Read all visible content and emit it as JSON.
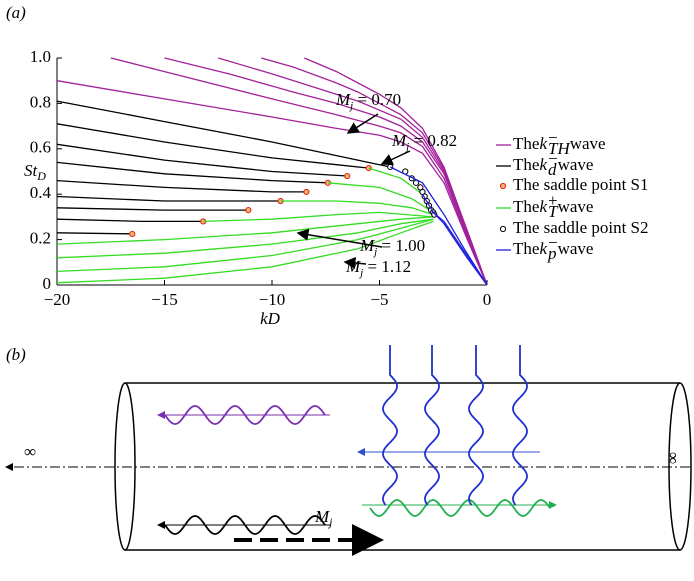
{
  "chart_data": {
    "type": "line",
    "panel_label": "(a)",
    "xlabel": "kD",
    "ylabel": {
      "main": "St",
      "sub": "D"
    },
    "xlim": [
      -20,
      0
    ],
    "ylim": [
      0,
      1
    ],
    "xticks": [
      {
        "value": -20,
        "label": "−20"
      },
      {
        "value": -15,
        "label": "−15"
      },
      {
        "value": -10,
        "label": "−10"
      },
      {
        "value": -5,
        "label": "−5"
      },
      0
    ],
    "yticks": [
      0,
      0.2,
      0.4,
      0.6,
      0.8,
      {
        "value": 1,
        "label": "1.0"
      }
    ],
    "series": [
      {
        "name": [
          "The ",
          "k",
          "−",
          "TH",
          " wave"
        ],
        "color": "#a3219a",
        "curves": [
          {
            "x": [
              -20,
              -15,
              -10,
              -7,
              -5,
              -4,
              -3,
              -2,
              -1,
              0
            ],
            "values": [
              0.9,
              0.82,
              0.74,
              0.69,
              0.66,
              0.63,
              0.58,
              0.45,
              0.22,
              0
            ]
          },
          {
            "x": [
              -17.5,
              -15,
              -10,
              -7,
              -5,
              -4,
              -3,
              -2,
              -1,
              0
            ],
            "values": [
              1.0,
              0.94,
              0.82,
              0.75,
              0.7,
              0.67,
              0.61,
              0.47,
              0.23,
              0
            ]
          },
          {
            "x": [
              -15,
              -12,
              -9,
              -7,
              -5,
              -4,
              -3,
              -2,
              -1,
              0
            ],
            "values": [
              1.0,
              0.93,
              0.85,
              0.8,
              0.74,
              0.7,
              0.63,
              0.49,
              0.24,
              0
            ]
          },
          {
            "x": [
              -12.5,
              -10,
              -8,
              -6,
              -5,
              -4,
              -3,
              -2,
              -1,
              0
            ],
            "values": [
              1.0,
              0.93,
              0.87,
              0.81,
              0.77,
              0.73,
              0.65,
              0.5,
              0.25,
              0
            ]
          },
          {
            "x": [
              -10.5,
              -9,
              -7,
              -6,
              -5,
              -4,
              -3,
              -2,
              -1,
              0
            ],
            "values": [
              1.0,
              0.96,
              0.89,
              0.85,
              0.8,
              0.75,
              0.67,
              0.51,
              0.26,
              0
            ]
          },
          {
            "x": [
              -8.5,
              -7,
              -6,
              -5,
              -4,
              -3,
              -2,
              -1,
              0
            ],
            "values": [
              1.0,
              0.94,
              0.89,
              0.84,
              0.78,
              0.69,
              0.52,
              0.26,
              0
            ]
          }
        ]
      },
      {
        "name": [
          "The ",
          "k",
          "−",
          "d",
          " wave"
        ],
        "color": "#000000",
        "curves": [
          {
            "x": [
              -20,
              -15,
              -10,
              -7,
              -5,
              -4.5
            ],
            "values": [
              0.81,
              0.72,
              0.63,
              0.57,
              0.53,
              0.52
            ]
          },
          {
            "x": [
              -20,
              -15,
              -10,
              -7,
              -5.5
            ],
            "values": [
              0.71,
              0.63,
              0.56,
              0.53,
              0.515
            ]
          },
          {
            "x": [
              -20,
              -15,
              -10,
              -6.5
            ],
            "values": [
              0.62,
              0.55,
              0.5,
              0.48
            ]
          },
          {
            "x": [
              -20,
              -15,
              -10,
              -7.4
            ],
            "values": [
              0.54,
              0.49,
              0.46,
              0.45
            ]
          },
          {
            "x": [
              -20,
              -15,
              -10,
              -8.4
            ],
            "values": [
              0.46,
              0.43,
              0.41,
              0.41
            ]
          },
          {
            "x": [
              -20,
              -15,
              -11,
              -9.6
            ],
            "values": [
              0.39,
              0.37,
              0.37,
              0.37
            ]
          },
          {
            "x": [
              -20,
              -15,
              -11.1
            ],
            "values": [
              0.34,
              0.33,
              0.33
            ]
          },
          {
            "x": [
              -20,
              -16,
              -13.2
            ],
            "values": [
              0.29,
              0.28,
              0.28
            ]
          },
          {
            "x": [
              -20,
              -16.5
            ],
            "values": [
              0.23,
              0.225
            ]
          }
        ]
      },
      {
        "name": "The saddle point S1",
        "color": "#e0201a",
        "fill": "#f6b26b",
        "marker": "circle",
        "x": [
          -16.5,
          -13.2,
          -11.1,
          -9.6,
          -8.4,
          -7.4,
          -6.5,
          -5.5
        ],
        "values": [
          0.225,
          0.28,
          0.33,
          0.37,
          0.41,
          0.45,
          0.48,
          0.515
        ]
      },
      {
        "name": [
          "The ",
          "k",
          "+",
          "T",
          " wave"
        ],
        "color": "#33dd22",
        "curves": [
          {
            "x": [
              -5.5,
              -4,
              -3,
              -2.5
            ],
            "values": [
              0.515,
              0.47,
              0.4,
              0.33
            ]
          },
          {
            "x": [
              -7.4,
              -5,
              -3.5,
              -2.5
            ],
            "values": [
              0.45,
              0.43,
              0.38,
              0.32
            ]
          },
          {
            "x": [
              -9.6,
              -7,
              -5,
              -3.5,
              -2.5
            ],
            "values": [
              0.37,
              0.37,
              0.36,
              0.34,
              0.31
            ]
          },
          {
            "x": [
              -13.2,
              -10,
              -7,
              -5,
              -2.5
            ],
            "values": [
              0.28,
              0.29,
              0.31,
              0.32,
              0.3
            ]
          },
          {
            "x": [
              -20,
              -15,
              -10,
              -6,
              -4,
              -2.5
            ],
            "values": [
              0.18,
              0.2,
              0.23,
              0.27,
              0.29,
              0.3
            ]
          },
          {
            "x": [
              -20,
              -15,
              -10,
              -6,
              -4,
              -2.5
            ],
            "values": [
              0.12,
              0.14,
              0.18,
              0.23,
              0.27,
              0.29
            ]
          },
          {
            "x": [
              -20,
              -15,
              -10,
              -6,
              -4,
              -2.5
            ],
            "values": [
              0.06,
              0.08,
              0.13,
              0.2,
              0.25,
              0.29
            ]
          },
          {
            "x": [
              -20,
              -15,
              -10,
              -6,
              -4,
              -2.5
            ],
            "values": [
              0.01,
              0.03,
              0.08,
              0.16,
              0.23,
              0.28
            ]
          }
        ]
      },
      {
        "name": "The saddle point S2",
        "color": "#000000",
        "fill": "#ffffff",
        "marker": "circle",
        "x": [
          -4.5,
          -3.8,
          -3.5,
          -3.3,
          -3.1,
          -3.0,
          -2.9,
          -2.8,
          -2.7,
          -2.6,
          -2.5,
          -2.45
        ],
        "values": [
          0.52,
          0.5,
          0.47,
          0.45,
          0.43,
          0.41,
          0.39,
          0.37,
          0.35,
          0.33,
          0.32,
          0.31
        ]
      },
      {
        "name": [
          "The ",
          "k",
          "−",
          "p",
          " wave"
        ],
        "color": "#2020dd",
        "curves": [
          {
            "x": [
              -4.5,
              -3,
              -2,
              -1,
              0
            ],
            "values": [
              0.52,
              0.45,
              0.31,
              0.15,
              0
            ]
          },
          {
            "x": [
              -3,
              -2.5,
              -2,
              -1,
              0
            ],
            "values": [
              0.4,
              0.32,
              0.28,
              0.14,
              0
            ]
          },
          {
            "x": [
              -2.6,
              -2,
              -1,
              0
            ],
            "values": [
              0.33,
              0.27,
              0.13,
              0
            ]
          }
        ]
      }
    ],
    "annotations": [
      [
        "M",
        "j",
        " = 0.70"
      ],
      [
        "M",
        "j",
        " = 0.82"
      ],
      [
        "M",
        "j",
        " = 1.00"
      ],
      [
        "M",
        "j",
        " = 1.12"
      ]
    ]
  },
  "diagram": {
    "label": "(b)",
    "left_symbol": "∞",
    "right_symbol": "∞",
    "flow_label": {
      "main": "M",
      "sub": "j"
    }
  }
}
